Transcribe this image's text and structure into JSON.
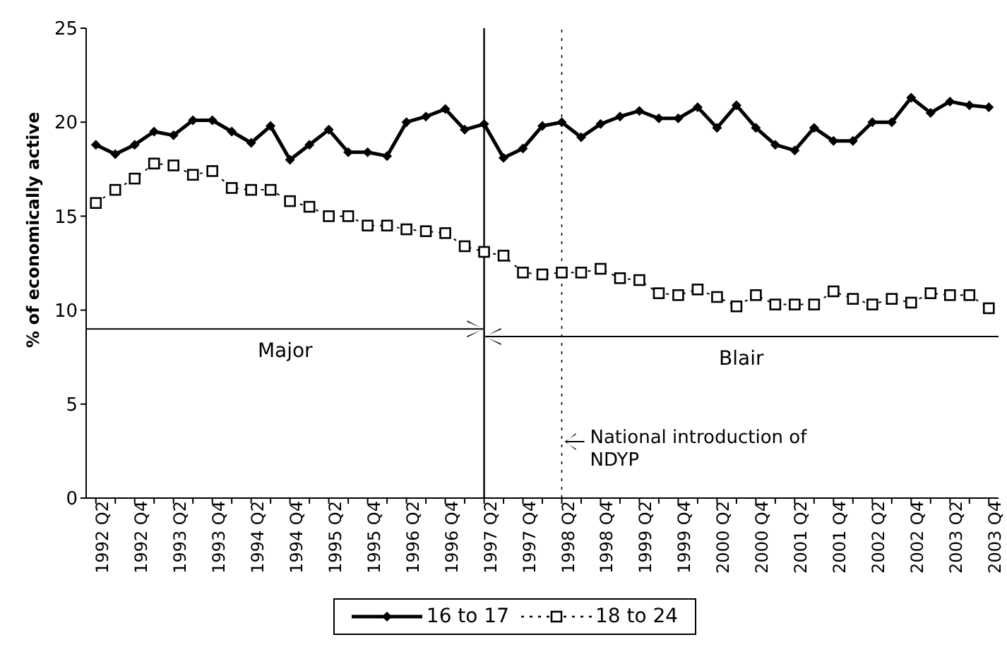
{
  "chart_data": {
    "type": "line",
    "ylabel": "% of economically active",
    "categories": [
      "1992 Q2",
      null,
      "1992 Q4",
      null,
      "1993 Q2",
      null,
      "1993 Q4",
      null,
      "1994 Q2",
      null,
      "1994 Q4",
      null,
      "1995 Q2",
      null,
      "1995 Q4",
      null,
      "1996 Q2",
      null,
      "1996 Q4",
      null,
      "1997 Q2",
      null,
      "1997 Q4",
      null,
      "1998 Q2",
      null,
      "1998 Q4",
      null,
      "1999 Q2",
      null,
      "1999 Q4",
      null,
      "2000 Q2",
      null,
      "2000 Q4",
      null,
      "2001 Q2",
      null,
      "2001 Q4",
      null,
      "2002 Q2",
      null,
      "2002 Q4",
      null,
      "2003 Q2",
      null,
      "2003 Q4"
    ],
    "series": [
      {
        "name": "16 to 17",
        "color": "#000000",
        "marker": "diamond",
        "line_style": "solid",
        "values": [
          18.8,
          18.3,
          18.8,
          19.5,
          19.3,
          20.1,
          20.1,
          19.5,
          18.9,
          19.8,
          18.0,
          18.8,
          19.6,
          18.4,
          18.4,
          18.2,
          20.0,
          20.3,
          20.7,
          19.6,
          19.9,
          18.1,
          18.6,
          19.8,
          20.0,
          19.2,
          19.9,
          20.3,
          20.6,
          20.2,
          20.2,
          20.8,
          19.7,
          20.9,
          19.7,
          18.8,
          18.5,
          19.7,
          19.0,
          19.0,
          20.0,
          20.0,
          21.3,
          20.5,
          21.1,
          20.9,
          20.8
        ]
      },
      {
        "name": "18 to 24",
        "color": "#000000",
        "marker": "square",
        "line_style": "dotted",
        "values": [
          15.7,
          16.4,
          17.0,
          17.8,
          17.7,
          17.2,
          17.4,
          16.5,
          16.4,
          16.4,
          15.8,
          15.5,
          15.0,
          15.0,
          14.5,
          14.5,
          14.3,
          14.2,
          14.1,
          13.4,
          13.1,
          12.9,
          12.0,
          11.9,
          12.0,
          12.0,
          12.2,
          11.7,
          11.6,
          10.9,
          10.8,
          11.1,
          10.7,
          10.2,
          10.8,
          10.3,
          10.3,
          10.3,
          11.0,
          10.6,
          10.3,
          10.6,
          10.4,
          10.9,
          10.8,
          10.8,
          10.1
        ]
      }
    ],
    "ylim": [
      0,
      25
    ],
    "yticks": [
      0,
      5,
      10,
      15,
      20,
      25
    ],
    "ref_lines": [
      {
        "axis": "x",
        "value": "1997 Q2",
        "line_style": "solid"
      },
      {
        "axis": "x",
        "value": "1998 Q2",
        "line_style": "dotted"
      }
    ],
    "annotations": [
      "Major",
      "Blair",
      "National introduction of NDYP"
    ],
    "legend": "bottom"
  }
}
